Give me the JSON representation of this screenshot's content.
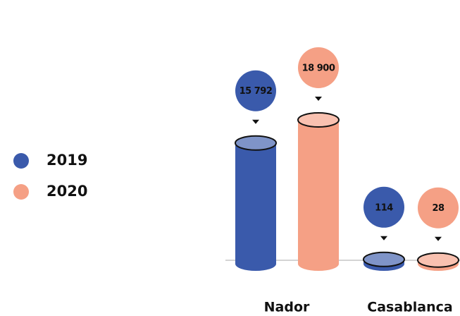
{
  "chart_data": {
    "type": "bar",
    "categories": [
      "Nador",
      "Casablanca"
    ],
    "series": [
      {
        "name": "2019",
        "color": "#3a5aab",
        "values": [
          15792,
          114
        ],
        "value_labels": [
          "15 792",
          "114"
        ]
      },
      {
        "name": "2020",
        "color": "#f5a085",
        "values": [
          18900,
          28
        ],
        "value_labels": [
          "18 900",
          "28"
        ]
      }
    ]
  }
}
